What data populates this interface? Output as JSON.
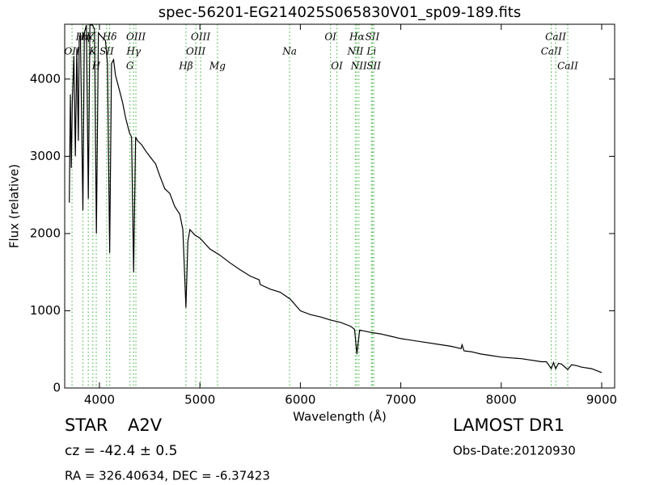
{
  "chart_data": {
    "type": "line",
    "title": "spec-56201-EG214025S065830V01_sp09-189.fits",
    "xlabel": "Wavelength (Å)",
    "ylabel": "Flux (relative)",
    "xlim": [
      3654,
      9129
    ],
    "ylim": [
      0,
      4710
    ],
    "xticks": [
      4000,
      5000,
      6000,
      7000,
      8000,
      9000
    ],
    "yticks": [
      0,
      1000,
      2000,
      3000,
      4000
    ],
    "color": "#000000",
    "line_color": "#55bb55",
    "x": [
      3700,
      3710,
      3720,
      3730,
      3745,
      3760,
      3775,
      3790,
      3798,
      3810,
      3835,
      3850,
      3870,
      3889,
      3905,
      3930,
      3950,
      3970,
      3990,
      4020,
      4060,
      4080,
      4102,
      4120,
      4140,
      4160,
      4180,
      4200,
      4230,
      4260,
      4300,
      4320,
      4340,
      4360,
      4380,
      4420,
      4460,
      4500,
      4560,
      4600,
      4650,
      4700,
      4750,
      4800,
      4830,
      4861,
      4880,
      4900,
      4950,
      5000,
      5100,
      5200,
      5300,
      5400,
      5500,
      5590,
      5600,
      5700,
      5800,
      5900,
      6000,
      6100,
      6200,
      6300,
      6400,
      6500,
      6540,
      6563,
      6590,
      6700,
      6800,
      6900,
      7000,
      7200,
      7400,
      7500,
      7600,
      7610,
      7630,
      7700,
      7800,
      7900,
      8000,
      8200,
      8400,
      8450,
      8498,
      8520,
      8542,
      8570,
      8600,
      8662,
      8700,
      8750,
      8800,
      8900,
      9000
    ],
    "values": [
      2400,
      3800,
      2850,
      3700,
      4300,
      3000,
      4400,
      3200,
      4500,
      4600,
      2300,
      4600,
      4700,
      2450,
      4700,
      4700,
      4650,
      2000,
      4600,
      4550,
      4500,
      4200,
      1750,
      4200,
      4250,
      4050,
      3950,
      3850,
      3700,
      3500,
      3300,
      3250,
      1500,
      3250,
      3200,
      3150,
      3070,
      3000,
      2900,
      2750,
      2580,
      2520,
      2350,
      2250,
      2050,
      1040,
      1900,
      2050,
      1980,
      1940,
      1800,
      1720,
      1620,
      1530,
      1450,
      1400,
      1340,
      1280,
      1240,
      1150,
      1000,
      950,
      920,
      880,
      850,
      800,
      760,
      440,
      750,
      720,
      700,
      670,
      640,
      600,
      560,
      540,
      510,
      560,
      480,
      470,
      440,
      420,
      400,
      380,
      340,
      340,
      250,
      330,
      250,
      320,
      310,
      240,
      300,
      290,
      270,
      250,
      200
    ],
    "lines": [
      {
        "wavelength": 3727,
        "label": "OII"
      },
      {
        "wavelength": 3835,
        "label": "Hη"
      },
      {
        "wavelength": 3889,
        "label": "Hζ"
      },
      {
        "wavelength": 3934,
        "label": "K"
      },
      {
        "wavelength": 3968,
        "label": "H"
      },
      {
        "wavelength": 4072,
        "label": "SII"
      },
      {
        "wavelength": 4102,
        "label": "Hδ"
      },
      {
        "wavelength": 4304,
        "label": "G"
      },
      {
        "wavelength": 4340,
        "label": "Hγ"
      },
      {
        "wavelength": 4363,
        "label": "OIII"
      },
      {
        "wavelength": 4861,
        "label": "Hβ"
      },
      {
        "wavelength": 4959,
        "label": "OIII"
      },
      {
        "wavelength": 5007,
        "label": "OIII"
      },
      {
        "wavelength": 5175,
        "label": "Mg"
      },
      {
        "wavelength": 5893,
        "label": "Na"
      },
      {
        "wavelength": 6300,
        "label": "OI"
      },
      {
        "wavelength": 6364,
        "label": "OI"
      },
      {
        "wavelength": 6548,
        "label": "NII"
      },
      {
        "wavelength": 6563,
        "label": "Hα"
      },
      {
        "wavelength": 6583,
        "label": "NII"
      },
      {
        "wavelength": 6708,
        "label": "Li"
      },
      {
        "wavelength": 6717,
        "label": "SII"
      },
      {
        "wavelength": 6731,
        "label": "SII"
      },
      {
        "wavelength": 8498,
        "label": "CaII"
      },
      {
        "wavelength": 8542,
        "label": "CaII"
      },
      {
        "wavelength": 8662,
        "label": "CaII"
      }
    ],
    "footer": {
      "class": "STAR",
      "subclass": "A2V",
      "cz": "cz = -42.4 ± 0.5",
      "coords": "RA = 326.40634, DEC = -6.37423",
      "survey": "LAMOST DR1",
      "obs_date": "Obs-Date:20120930"
    }
  }
}
